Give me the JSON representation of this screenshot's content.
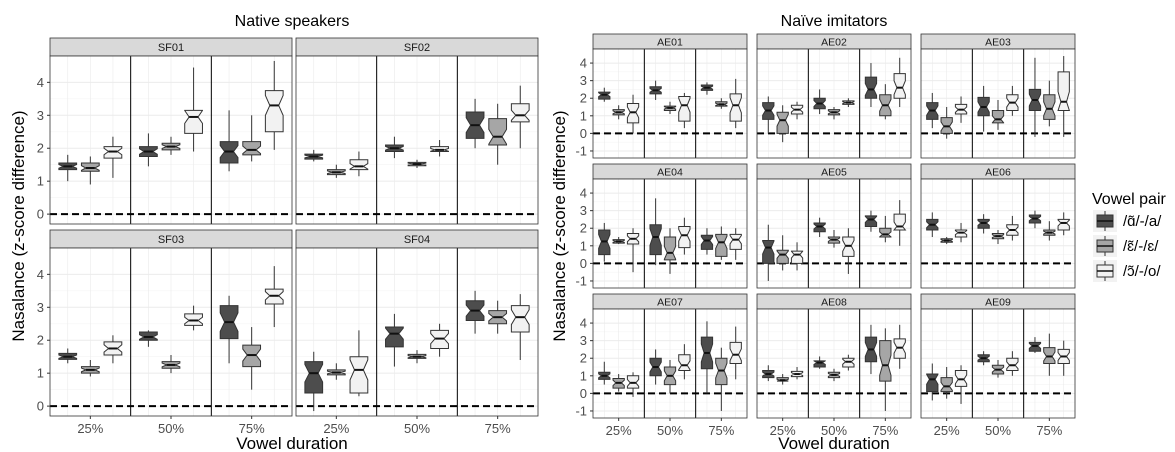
{
  "chart_data": [
    {
      "type": "boxplot",
      "title": "Native speakers",
      "xlabel": "Vowel duration",
      "ylabel": "Nasalance (z-score difference)",
      "ylim": [
        -0.3,
        4.8
      ],
      "yticks": [
        0,
        1,
        2,
        3,
        4
      ],
      "categories": [
        "25%",
        "50%",
        "75%"
      ],
      "series_names": [
        "/ɑ̃/-/a/",
        "/ɛ̃/-/ɛ/",
        "/ɔ̃/-/o/"
      ],
      "reference_line": 0,
      "panels": [
        {
          "label": "SF01",
          "boxes": [
            [
              [
                1.0,
                1.35,
                1.45,
                1.55,
                1.8
              ],
              [
                0.9,
                1.3,
                1.4,
                1.55,
                1.75
              ],
              [
                1.1,
                1.7,
                1.9,
                2.05,
                2.35
              ]
            ],
            [
              [
                1.45,
                1.75,
                1.9,
                2.05,
                2.45
              ],
              [
                1.8,
                1.95,
                2.05,
                2.15,
                2.35
              ],
              [
                1.9,
                2.45,
                2.95,
                3.15,
                4.45
              ]
            ],
            [
              [
                1.3,
                1.55,
                1.9,
                2.2,
                3.15
              ],
              [
                1.6,
                1.8,
                1.95,
                2.2,
                3.0
              ],
              [
                1.95,
                2.5,
                3.3,
                3.75,
                4.65
              ]
            ]
          ]
        },
        {
          "label": "SF02",
          "boxes": [
            [
              [
                1.6,
                1.67,
                1.75,
                1.82,
                1.95
              ],
              [
                1.1,
                1.2,
                1.27,
                1.35,
                1.5
              ],
              [
                1.15,
                1.35,
                1.45,
                1.65,
                1.9
              ]
            ],
            [
              [
                1.7,
                1.9,
                2.0,
                2.1,
                2.35
              ],
              [
                1.4,
                1.47,
                1.52,
                1.57,
                1.65
              ],
              [
                1.75,
                1.9,
                1.95,
                2.05,
                2.25
              ]
            ],
            [
              [
                2.0,
                2.3,
                2.7,
                3.1,
                3.5
              ],
              [
                1.5,
                2.1,
                2.35,
                2.9,
                3.35
              ],
              [
                2.0,
                2.8,
                3.0,
                3.35,
                3.9
              ]
            ]
          ]
        },
        {
          "label": "SF03",
          "boxes": [
            [
              [
                1.3,
                1.42,
                1.5,
                1.6,
                1.75
              ],
              [
                0.9,
                1.0,
                1.1,
                1.2,
                1.4
              ],
              [
                1.3,
                1.55,
                1.75,
                1.95,
                2.15
              ]
            ],
            [
              [
                1.8,
                2.0,
                2.1,
                2.25,
                2.3
              ],
              [
                1.0,
                1.15,
                1.25,
                1.35,
                1.55
              ],
              [
                2.3,
                2.45,
                2.6,
                2.8,
                3.05
              ]
            ],
            [
              [
                1.3,
                2.05,
                2.55,
                3.05,
                3.35
              ],
              [
                0.5,
                1.2,
                1.55,
                1.85,
                2.4
              ],
              [
                2.4,
                3.1,
                3.35,
                3.55,
                4.25
              ]
            ]
          ]
        },
        {
          "label": "SF04",
          "boxes": [
            [
              [
                -0.15,
                0.4,
                1.0,
                1.35,
                1.65
              ],
              [
                0.8,
                0.95,
                1.02,
                1.1,
                1.3
              ],
              [
                0.3,
                0.4,
                1.1,
                1.5,
                2.3
              ]
            ],
            [
              [
                1.2,
                1.8,
                2.2,
                2.4,
                2.8
              ],
              [
                1.3,
                1.45,
                1.5,
                1.57,
                1.7
              ],
              [
                1.5,
                1.75,
                2.05,
                2.3,
                2.5
              ]
            ],
            [
              [
                2.2,
                2.6,
                2.9,
                3.2,
                3.5
              ],
              [
                2.2,
                2.5,
                2.7,
                2.9,
                3.2
              ],
              [
                1.4,
                2.25,
                2.7,
                3.05,
                3.4
              ]
            ]
          ]
        }
      ]
    },
    {
      "type": "boxplot",
      "title": "Naïve imitators",
      "xlabel": "Vowel duration",
      "ylabel": "Nasalance (z-score difference)",
      "ylim": [
        -1.4,
        4.8
      ],
      "yticks": [
        -1,
        0,
        1,
        2,
        3,
        4
      ],
      "categories": [
        "25%",
        "50%",
        "75%"
      ],
      "series_names": [
        "/ɑ̃/-/a/",
        "/ɛ̃/-/ɛ/",
        "/ɔ̃/-/o/"
      ],
      "reference_line": 0,
      "panels": [
        {
          "label": "AE01",
          "boxes": [
            [
              [
                1.8,
                1.95,
                2.2,
                2.35,
                2.6
              ],
              [
                0.8,
                1.05,
                1.2,
                1.35,
                1.6
              ],
              [
                0.0,
                0.6,
                1.2,
                1.7,
                2.2
              ]
            ],
            [
              [
                1.9,
                2.25,
                2.45,
                2.65,
                3.0
              ],
              [
                1.1,
                1.3,
                1.45,
                1.55,
                1.8
              ],
              [
                0.3,
                0.7,
                1.6,
                2.1,
                2.3
              ]
            ],
            [
              [
                2.2,
                2.45,
                2.6,
                2.75,
                2.9
              ],
              [
                1.4,
                1.55,
                1.65,
                1.8,
                2.0
              ],
              [
                0.3,
                0.7,
                1.6,
                2.25,
                3.1
              ]
            ]
          ]
        },
        {
          "label": "AE02",
          "boxes": [
            [
              [
                0.0,
                0.8,
                1.3,
                1.75,
                2.1
              ],
              [
                -0.5,
                0.0,
                0.75,
                1.2,
                1.6
              ],
              [
                0.8,
                1.1,
                1.35,
                1.6,
                1.8
              ]
            ],
            [
              [
                1.1,
                1.4,
                1.7,
                2.0,
                2.5
              ],
              [
                0.8,
                1.05,
                1.2,
                1.35,
                1.5
              ],
              [
                1.5,
                1.65,
                1.75,
                1.85,
                2.0
              ]
            ],
            [
              [
                1.5,
                2.0,
                2.5,
                3.2,
                4.0
              ],
              [
                0.8,
                1.0,
                1.6,
                2.2,
                2.8
              ],
              [
                1.5,
                2.0,
                2.6,
                3.4,
                4.3
              ]
            ]
          ]
        },
        {
          "label": "AE03",
          "boxes": [
            [
              [
                0.3,
                0.8,
                1.3,
                1.75,
                2.3
              ],
              [
                -0.3,
                0.0,
                0.4,
                0.9,
                1.5
              ],
              [
                0.6,
                1.1,
                1.35,
                1.65,
                2.1
              ]
            ],
            [
              [
                0.1,
                1.0,
                1.5,
                2.05,
                2.7
              ],
              [
                0.2,
                0.6,
                0.8,
                1.3,
                1.9
              ],
              [
                1.0,
                1.3,
                1.75,
                2.2,
                2.7
              ]
            ],
            [
              [
                -0.2,
                1.3,
                1.9,
                2.5,
                4.3
              ],
              [
                0.4,
                0.8,
                1.4,
                2.2,
                3.0
              ],
              [
                -0.2,
                1.3,
                1.8,
                3.5,
                4.4
              ]
            ]
          ]
        },
        {
          "label": "AE04",
          "boxes": [
            [
              [
                0.1,
                0.5,
                1.25,
                1.9,
                2.3
              ],
              [
                1.1,
                1.15,
                1.25,
                1.35,
                1.5
              ],
              [
                -0.5,
                1.1,
                1.4,
                1.7,
                2.0
              ]
            ],
            [
              [
                -0.1,
                0.5,
                1.5,
                2.2,
                3.7
              ],
              [
                -0.6,
                0.2,
                0.6,
                1.5,
                2.0
              ],
              [
                0.5,
                0.9,
                1.6,
                2.1,
                2.6
              ]
            ],
            [
              [
                0.5,
                0.8,
                1.3,
                1.6,
                2.0
              ],
              [
                0.2,
                0.4,
                1.2,
                1.65,
                2.1
              ],
              [
                0.2,
                0.8,
                1.35,
                1.65,
                2.0
              ]
            ]
          ]
        },
        {
          "label": "AE05",
          "boxes": [
            [
              [
                -1.0,
                0.0,
                0.9,
                1.3,
                2.2
              ],
              [
                -0.4,
                0.0,
                0.5,
                0.75,
                1.6
              ],
              [
                -0.4,
                0.0,
                0.5,
                0.7,
                1.2
              ]
            ],
            [
              [
                1.5,
                1.8,
                2.1,
                2.3,
                2.6
              ],
              [
                0.9,
                1.15,
                1.35,
                1.5,
                1.9
              ],
              [
                -0.6,
                0.4,
                1.0,
                1.5,
                2.0
              ]
            ],
            [
              [
                1.8,
                2.1,
                2.5,
                2.7,
                3.0
              ],
              [
                1.2,
                1.5,
                1.65,
                2.0,
                2.7
              ],
              [
                1.0,
                1.9,
                2.1,
                2.8,
                3.6
              ]
            ]
          ]
        },
        {
          "label": "AE06",
          "boxes": [
            [
              [
                1.5,
                1.9,
                2.2,
                2.5,
                2.9
              ],
              [
                1.1,
                1.2,
                1.3,
                1.4,
                1.5
              ],
              [
                1.2,
                1.5,
                1.75,
                1.9,
                2.3
              ]
            ],
            [
              [
                1.7,
                2.0,
                2.3,
                2.5,
                2.8
              ],
              [
                1.1,
                1.4,
                1.55,
                1.7,
                1.9
              ],
              [
                1.3,
                1.6,
                1.9,
                2.2,
                2.7
              ]
            ],
            [
              [
                2.0,
                2.3,
                2.55,
                2.75,
                3.0
              ],
              [
                1.3,
                1.6,
                1.75,
                1.9,
                2.4
              ],
              [
                1.6,
                1.9,
                2.3,
                2.5,
                2.9
              ]
            ]
          ]
        },
        {
          "label": "AE07",
          "boxes": [
            [
              [
                0.5,
                0.8,
                1.0,
                1.2,
                1.8
              ],
              [
                0.1,
                0.3,
                0.6,
                0.85,
                1.1
              ],
              [
                -0.2,
                0.3,
                0.6,
                1.0,
                1.2
              ]
            ],
            [
              [
                0.5,
                1.0,
                1.5,
                2.0,
                2.5
              ],
              [
                0.0,
                0.5,
                1.0,
                1.5,
                1.9
              ],
              [
                0.8,
                1.3,
                1.6,
                2.2,
                2.8
              ]
            ],
            [
              [
                0.0,
                1.4,
                2.3,
                3.2,
                4.1
              ],
              [
                -1.0,
                0.5,
                1.3,
                2.0,
                2.6
              ],
              [
                0.8,
                1.7,
                2.2,
                2.9,
                3.8
              ]
            ]
          ]
        },
        {
          "label": "AE08",
          "boxes": [
            [
              [
                0.7,
                0.9,
                1.1,
                1.3,
                1.6
              ],
              [
                0.5,
                0.7,
                0.75,
                0.9,
                1.1
              ],
              [
                0.8,
                0.95,
                1.1,
                1.25,
                1.5
              ]
            ],
            [
              [
                1.4,
                1.5,
                1.75,
                1.85,
                2.1
              ],
              [
                0.7,
                0.9,
                1.05,
                1.2,
                1.4
              ],
              [
                1.3,
                1.5,
                1.8,
                2.0,
                2.2
              ]
            ],
            [
              [
                1.1,
                1.8,
                2.5,
                3.2,
                3.9
              ],
              [
                -1.0,
                0.7,
                1.6,
                3.0,
                3.7
              ],
              [
                1.4,
                2.0,
                2.6,
                3.1,
                3.9
              ]
            ]
          ]
        },
        {
          "label": "AE09",
          "boxes": [
            [
              [
                -0.4,
                0.1,
                0.8,
                1.1,
                1.7
              ],
              [
                -0.3,
                0.1,
                0.4,
                0.9,
                1.5
              ],
              [
                -0.6,
                0.4,
                0.8,
                1.3,
                1.6
              ]
            ],
            [
              [
                1.6,
                1.8,
                2.0,
                2.2,
                2.4
              ],
              [
                0.9,
                1.1,
                1.35,
                1.6,
                1.9
              ],
              [
                1.0,
                1.3,
                1.6,
                2.0,
                2.4
              ]
            ],
            [
              [
                2.3,
                2.4,
                2.7,
                2.9,
                3.2
              ],
              [
                1.0,
                1.7,
                2.1,
                2.6,
                3.4
              ],
              [
                1.0,
                1.7,
                2.1,
                2.5,
                3.0
              ]
            ]
          ]
        }
      ]
    }
  ],
  "legend": {
    "title": "Vowel pair",
    "items": [
      {
        "label": "/ɑ̃/-/a/",
        "color": "#4d4d4d"
      },
      {
        "label": "/ɛ̃/-/ɛ/",
        "color": "#a6a6a6"
      },
      {
        "label": "/ɔ̃/-/o/",
        "color": "#f2f2f2"
      }
    ]
  },
  "colors": {
    "panel_background": "#ffffff",
    "grid": "#ebebeb",
    "strip_background": "#d9d9d9",
    "panel_border": "#333333",
    "axis_text": "#4d4d4d"
  }
}
